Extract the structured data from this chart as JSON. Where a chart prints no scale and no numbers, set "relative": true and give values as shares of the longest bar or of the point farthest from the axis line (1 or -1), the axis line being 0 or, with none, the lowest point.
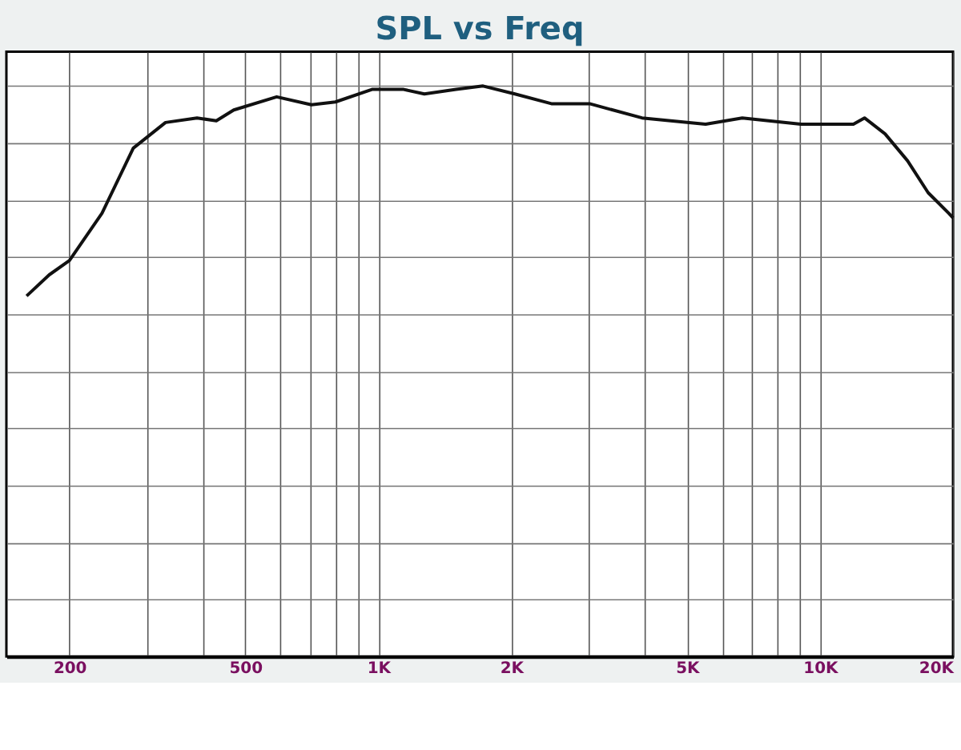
{
  "chart_data": {
    "type": "line",
    "title": "SPL vs Freq",
    "relative": true,
    "log": "x",
    "x": [
      160,
      180,
      200,
      237,
      279,
      330,
      389,
      430,
      471,
      589,
      706,
      800,
      968,
      1142,
      1272,
      1501,
      1727,
      2039,
      2466,
      3009,
      3955,
      5508,
      6668,
      9057,
      11900,
      12610,
      14040,
      15780,
      17570,
      19560,
      20000
    ],
    "series": [
      {
        "color": "#111111",
        "values": [
          0.632,
          0.669,
          0.694,
          0.777,
          0.891,
          0.936,
          0.944,
          0.939,
          0.958,
          0.981,
          0.967,
          0.972,
          0.994,
          0.994,
          0.986,
          0.994,
          1,
          0.986,
          0.969,
          0.969,
          0.944,
          0.933,
          0.944,
          0.933,
          0.933,
          0.944,
          0.916,
          0.869,
          0.813,
          0.777,
          0.769
        ]
      }
    ],
    "xlim": [
      144,
      20000
    ],
    "xticks": [
      200,
      {
        "value": 300,
        "label": null
      },
      {
        "value": 400,
        "label": null
      },
      500,
      {
        "value": 600,
        "label": null
      },
      {
        "value": 700,
        "label": null
      },
      {
        "value": 800,
        "label": null
      },
      {
        "value": 900,
        "label": null
      },
      {
        "value": 1000,
        "label": "1K"
      },
      {
        "value": 2000,
        "label": "2K"
      },
      {
        "value": 3000,
        "label": null
      },
      {
        "value": 4000,
        "label": null
      },
      {
        "value": 5000,
        "label": "5K"
      },
      {
        "value": 6000,
        "label": null
      },
      {
        "value": 7000,
        "label": null
      },
      {
        "value": 8000,
        "label": null
      },
      {
        "value": 9000,
        "label": null
      },
      {
        "value": 10000,
        "label": "10K"
      },
      {
        "value": 20000,
        "label": "20K"
      }
    ],
    "grid": true,
    "marker": "none",
    "line_style": "solid"
  }
}
